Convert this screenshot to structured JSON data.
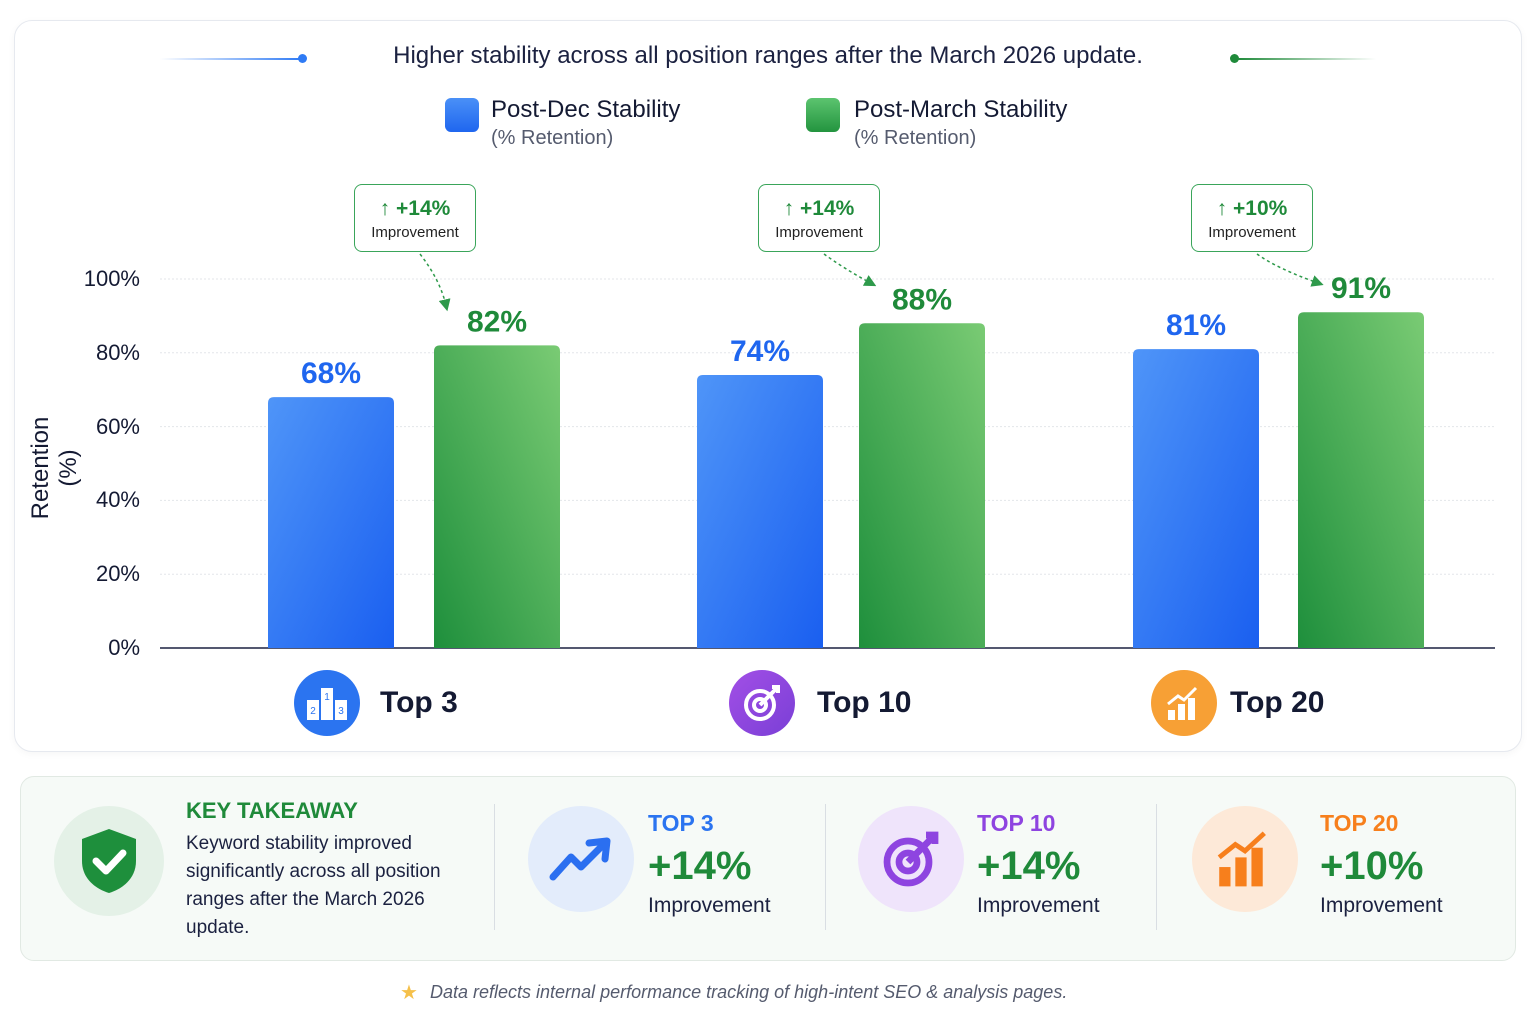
{
  "subtitle": "Higher stability across all position ranges after the March 2026 update.",
  "legend": [
    {
      "label": "Post-Dec Stability",
      "sub": "(% Retention)",
      "color": "#2f7bf5"
    },
    {
      "label": "Post-March Stability",
      "sub": "(% Retention)",
      "color": "#34a853"
    }
  ],
  "chart_data": {
    "type": "bar",
    "categories": [
      "Top 3",
      "Top 10",
      "Top 20"
    ],
    "series": [
      {
        "name": "Post-Dec Stability (% Retention)",
        "values": [
          68,
          74,
          81
        ],
        "color": "#2f7bf5"
      },
      {
        "name": "Post-March Stability (% Retention)",
        "values": [
          82,
          88,
          91
        ],
        "color": "#34a853"
      }
    ],
    "data_labels": [
      [
        "68%",
        "74%",
        "81%"
      ],
      [
        "82%",
        "88%",
        "91%"
      ]
    ],
    "ylabel": "Retention (%)",
    "ylim": [
      0,
      100
    ],
    "yticks": [
      "0%",
      "20%",
      "40%",
      "60%",
      "80%",
      "100%"
    ],
    "grid": true,
    "legend_position": "top",
    "annotations": [
      {
        "value": "+14%",
        "label": "Improvement"
      },
      {
        "value": "+14%",
        "label": "Improvement"
      },
      {
        "value": "+10%",
        "label": "Improvement"
      }
    ]
  },
  "category_icons": [
    {
      "name": "podium-icon",
      "color": "#2b74f0",
      "digits": [
        "1",
        "2",
        "3"
      ]
    },
    {
      "name": "target-icon",
      "color": "#8e44e0"
    },
    {
      "name": "growth-chart-icon",
      "color": "#f7a035"
    }
  ],
  "takeaway": {
    "title": "KEY TAKEAWAY",
    "body": "Keyword stability improved significantly across all position ranges after the March 2026 update."
  },
  "stats": [
    {
      "title": "TOP 3",
      "value": "+14%",
      "label": "Improvement",
      "color": "#2b74f0",
      "icon": "trend-up-icon"
    },
    {
      "title": "TOP 10",
      "value": "+14%",
      "label": "Improvement",
      "color": "#8e44e0",
      "icon": "target-icon"
    },
    {
      "title": "TOP 20",
      "value": "+10%",
      "label": "Improvement",
      "color": "#f77f1c",
      "icon": "growth-chart-icon"
    }
  ],
  "footnote": "Data reflects internal performance tracking of high-intent SEO & analysis pages."
}
